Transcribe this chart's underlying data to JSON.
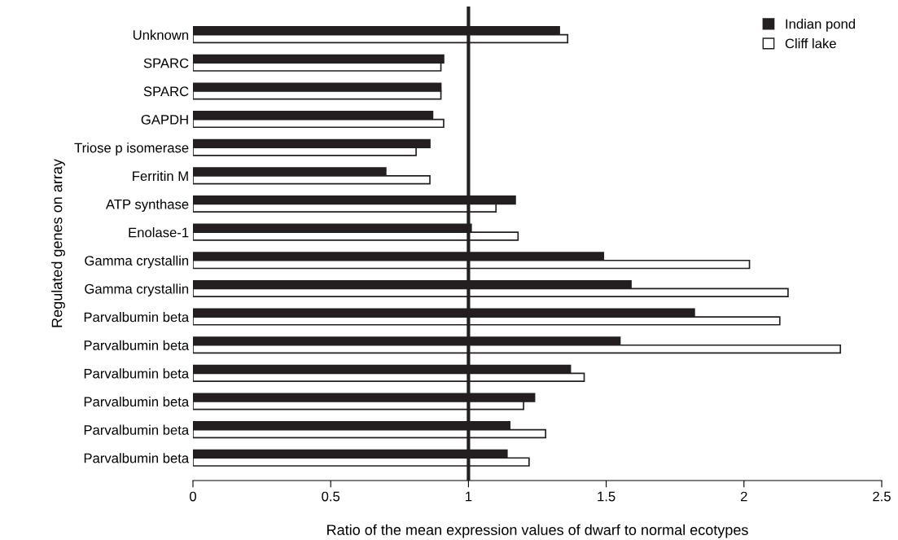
{
  "chart_data": {
    "type": "bar",
    "orientation": "horizontal",
    "categories": [
      "Unknown",
      "SPARC",
      "SPARC",
      "GAPDH",
      "Triose p isomerase",
      "Ferritin M",
      "ATP synthase",
      "Enolase-1",
      "Gamma crystallin",
      "Gamma crystallin",
      "Parvalbumin beta",
      "Parvalbumin beta",
      "Parvalbumin beta",
      "Parvalbumin beta",
      "Parvalbumin beta",
      "Parvalbumin beta"
    ],
    "series": [
      {
        "name": "Indian pond",
        "color": "#231f20",
        "values": [
          1.33,
          0.91,
          0.9,
          0.87,
          0.86,
          0.7,
          1.17,
          1.01,
          1.49,
          1.59,
          1.82,
          1.55,
          1.37,
          1.24,
          1.15,
          1.14
        ]
      },
      {
        "name": "Cliff lake",
        "color": "#ffffff",
        "values": [
          1.36,
          0.9,
          0.9,
          0.91,
          0.81,
          0.86,
          1.1,
          1.18,
          2.02,
          2.16,
          2.13,
          2.35,
          1.42,
          1.2,
          1.28,
          1.22
        ]
      }
    ],
    "xlabel": "Ratio of the mean expression values of dwarf to normal ecotypes",
    "ylabel": "Regulated genes on array",
    "xlim": [
      0,
      2.5
    ],
    "xticks": [
      0,
      0.5,
      1,
      1.5,
      2,
      2.5
    ],
    "ref_lines": [
      {
        "axis": "x",
        "value": 1,
        "color": "#231f20"
      }
    ],
    "legend": "top right",
    "grid": false
  }
}
